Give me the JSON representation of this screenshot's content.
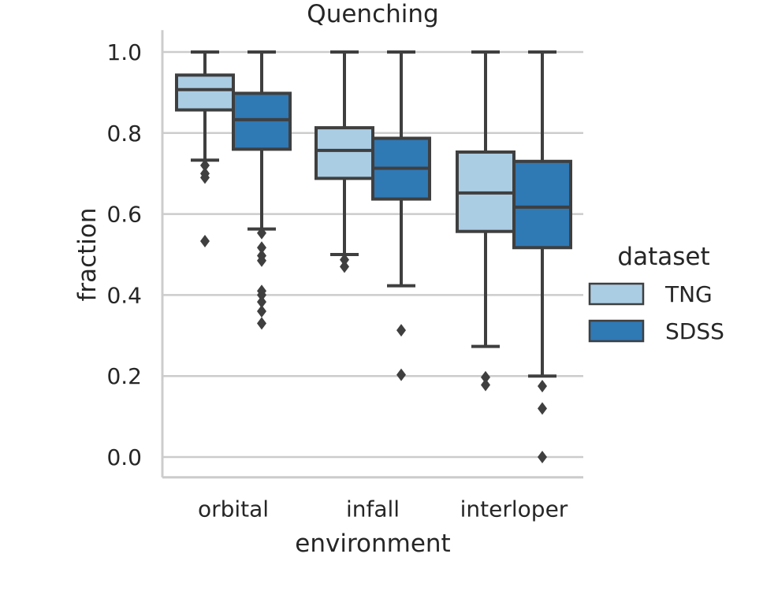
{
  "chart_data": {
    "type": "box",
    "title": "Quenching",
    "xlabel": "environment",
    "ylabel": "fraction",
    "ylim": [
      -0.05,
      1.05
    ],
    "yticks": [
      "0.0",
      "0.2",
      "0.4",
      "0.6",
      "0.8",
      "1.0"
    ],
    "grid": "horizontal",
    "legend_position": "right",
    "legend_title": "dataset",
    "categories": [
      "orbital",
      "infall",
      "interloper"
    ],
    "series": [
      {
        "name": "TNG",
        "color": "#aacde4",
        "boxes": [
          {
            "whisker_low": 0.733,
            "q1": 0.857,
            "median": 0.907,
            "q3": 0.943,
            "whisker_high": 1.0,
            "outliers": [
              0.72,
              0.7,
              0.69,
              0.533
            ]
          },
          {
            "whisker_low": 0.5,
            "q1": 0.688,
            "median": 0.757,
            "q3": 0.813,
            "whisker_high": 1.0,
            "outliers": [
              0.487,
              0.47
            ]
          },
          {
            "whisker_low": 0.273,
            "q1": 0.557,
            "median": 0.652,
            "q3": 0.753,
            "whisker_high": 1.0,
            "outliers": [
              0.197,
              0.178
            ]
          }
        ]
      },
      {
        "name": "SDSS",
        "color": "#2f79b5",
        "boxes": [
          {
            "whisker_low": 0.563,
            "q1": 0.76,
            "median": 0.833,
            "q3": 0.898,
            "whisker_high": 1.0,
            "outliers": [
              0.553,
              0.517,
              0.497,
              0.485,
              0.41,
              0.4,
              0.383,
              0.36,
              0.33
            ]
          },
          {
            "whisker_low": 0.423,
            "q1": 0.637,
            "median": 0.713,
            "q3": 0.787,
            "whisker_high": 1.0,
            "outliers": [
              0.313,
              0.203
            ]
          },
          {
            "whisker_low": 0.2,
            "q1": 0.517,
            "median": 0.617,
            "q3": 0.73,
            "whisker_high": 1.0,
            "outliers": [
              0.175,
              0.12,
              0.0
            ]
          }
        ]
      }
    ]
  }
}
